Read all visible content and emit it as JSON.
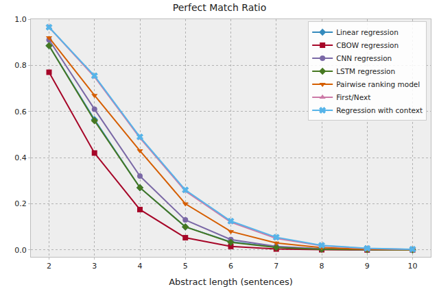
{
  "chart_data": {
    "type": "line",
    "title": "Perfect Match Ratio",
    "x_label": "Abstract length (sentences)",
    "x": [
      2,
      3,
      4,
      5,
      6,
      7,
      8,
      9,
      10
    ],
    "series": [
      {
        "name": "Linear regression",
        "color": "#348abd",
        "marker": "diamond",
        "values": [
          0.885,
          0.565,
          0.27,
          0.1,
          0.035,
          0.012,
          0.004,
          0.001,
          0.0
        ]
      },
      {
        "name": "CBOW regression",
        "color": "#a60628",
        "marker": "square",
        "values": [
          0.77,
          0.42,
          0.175,
          0.053,
          0.015,
          0.004,
          0.001,
          0.0,
          0.0
        ]
      },
      {
        "name": "CNN regression",
        "color": "#7a68a6",
        "marker": "circle",
        "values": [
          0.91,
          0.61,
          0.32,
          0.13,
          0.045,
          0.015,
          0.005,
          0.001,
          0.0
        ]
      },
      {
        "name": "LSTM regression",
        "color": "#467821",
        "marker": "diamond",
        "values": [
          0.885,
          0.56,
          0.27,
          0.1,
          0.033,
          0.011,
          0.003,
          0.001,
          0.0
        ]
      },
      {
        "name": "Pairwise ranking model",
        "color": "#d55e00",
        "marker": "triangle-down",
        "values": [
          0.92,
          0.67,
          0.43,
          0.2,
          0.08,
          0.03,
          0.01,
          0.003,
          0.001
        ]
      },
      {
        "name": "First/Next",
        "color": "#cc79a7",
        "marker": "triangle-up",
        "values": [
          0.965,
          0.75,
          0.485,
          0.255,
          0.12,
          0.05,
          0.018,
          0.006,
          0.002
        ]
      },
      {
        "name": "Regression with context",
        "color": "#56b4e9",
        "marker": "x",
        "values": [
          0.965,
          0.755,
          0.49,
          0.26,
          0.125,
          0.055,
          0.02,
          0.007,
          0.003
        ]
      }
    ],
    "xlim": [
      1.6,
      10.4
    ],
    "xticks": [
      2,
      3,
      4,
      5,
      6,
      7,
      8,
      9,
      10
    ],
    "ylim": [
      -0.03,
      1.0
    ],
    "yticks": [
      {
        "value": 0,
        "label": "0.0"
      },
      0.2,
      0.4,
      0.6,
      0.8,
      {
        "value": 1,
        "label": "1.0"
      }
    ],
    "grid": true,
    "legend": "upper right"
  }
}
